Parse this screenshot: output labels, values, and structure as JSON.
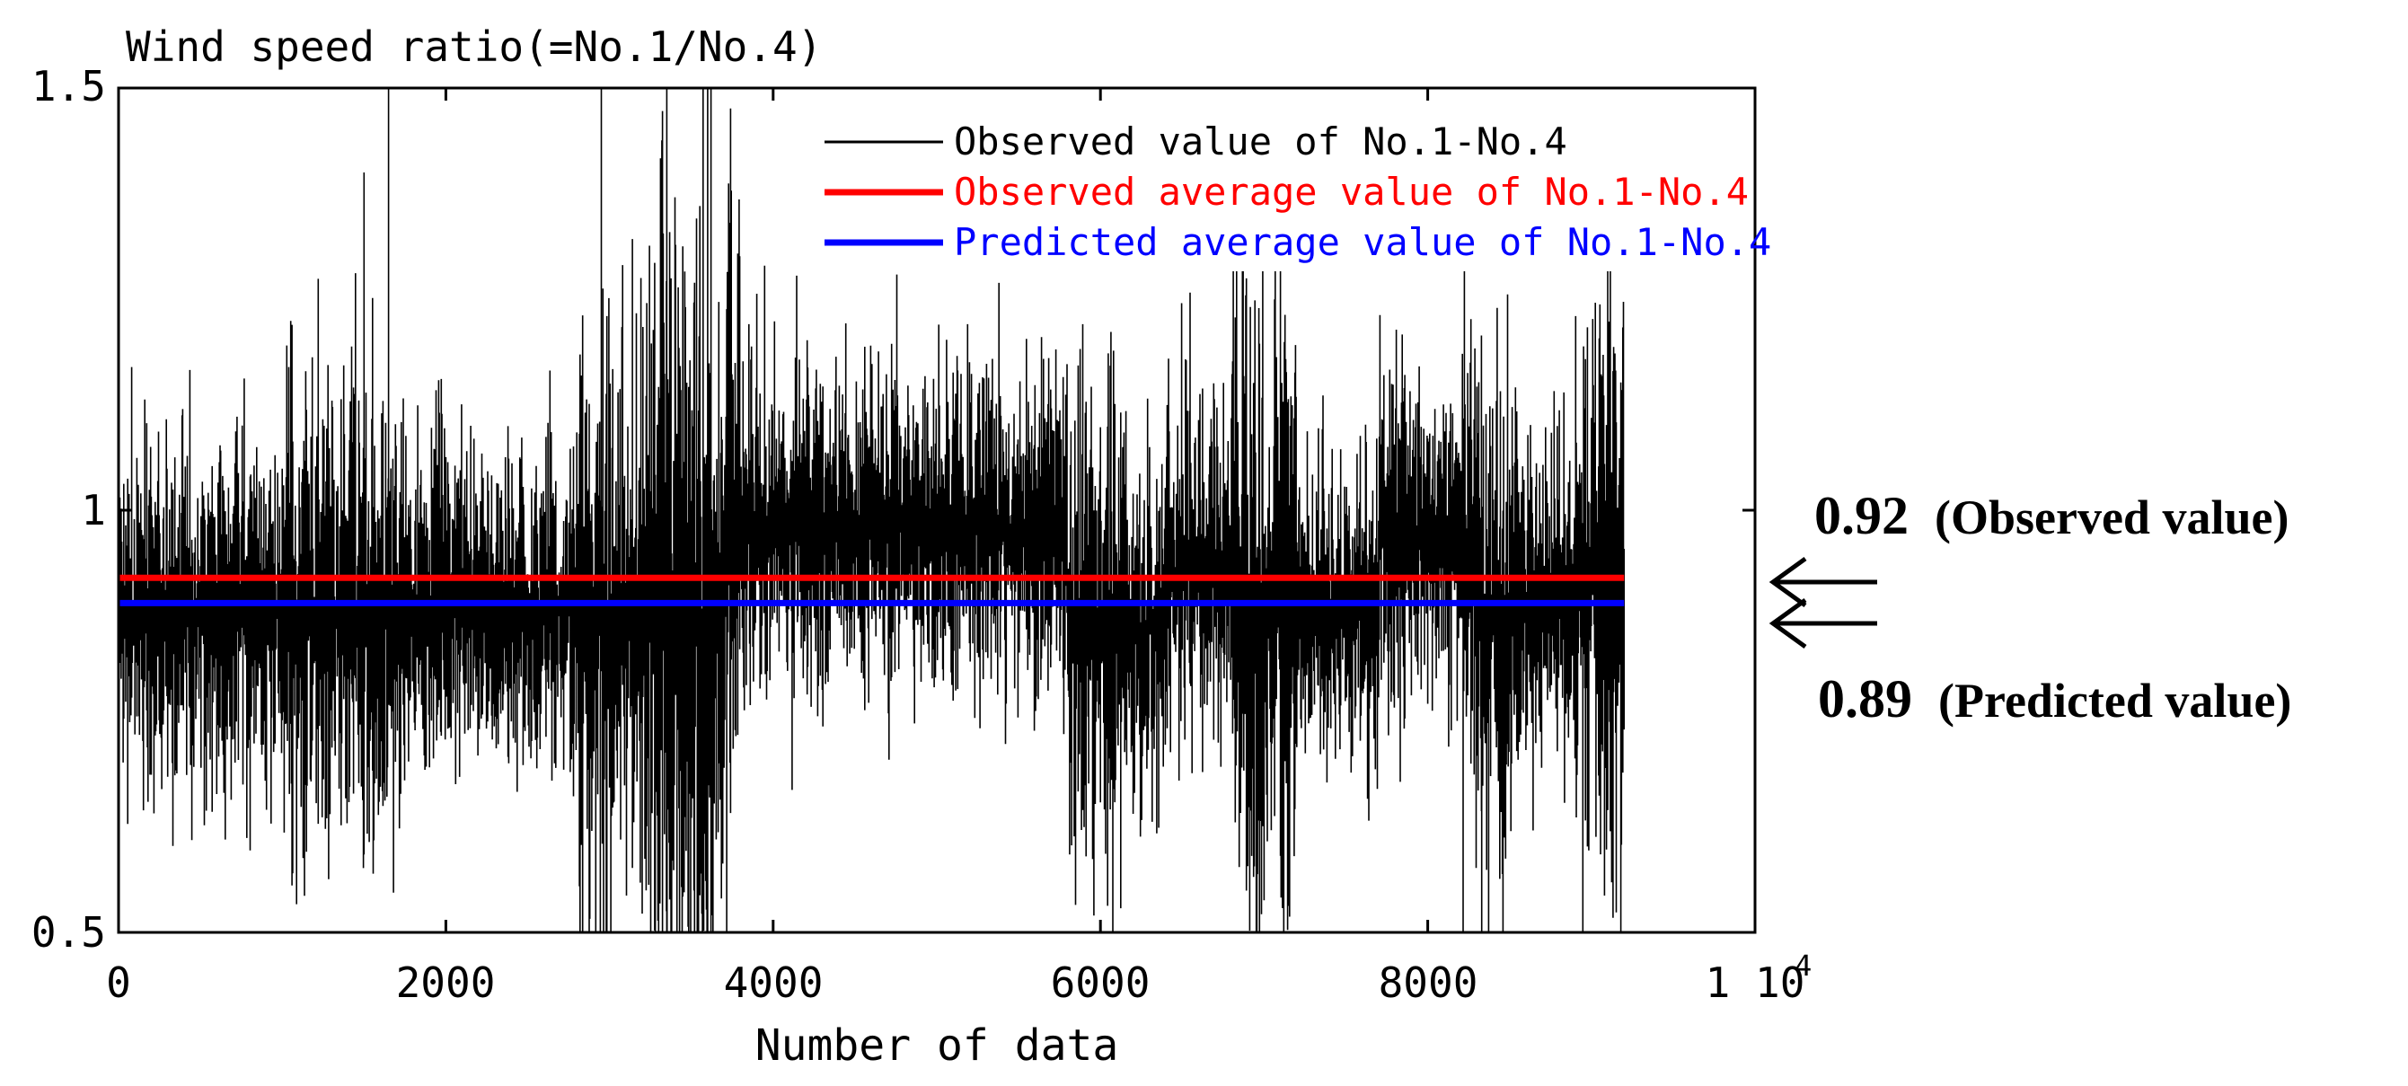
{
  "chart_data": {
    "type": "line",
    "title": "Wind speed ratio(=No.1/No.4)",
    "xlabel": "Number of data",
    "ylabel": "",
    "xlim": [
      0,
      10000
    ],
    "ylim": [
      0.5,
      1.5
    ],
    "x_ticks": [
      0,
      2000,
      4000,
      6000,
      8000,
      10000
    ],
    "x_tick_labels": [
      "0",
      "2000",
      "4000",
      "6000",
      "8000",
      "1 10"
    ],
    "x_tick_last_exponent": "4",
    "y_ticks": [
      0.5,
      1,
      1.5
    ],
    "y_tick_labels": [
      "0.5",
      "1",
      "1.5"
    ],
    "grid": false,
    "legend_position": "top-right",
    "series": [
      {
        "name": "Observed value of No.1-No.4",
        "color": "#000000",
        "kind": "noisy",
        "n_points": 9200,
        "mean": 0.92
      },
      {
        "name": "Observed average value of No.1-No.4",
        "color": "#ff0000",
        "kind": "constant",
        "x": [
          0,
          9200
        ],
        "value": 0.92
      },
      {
        "name": "Predicted average value of No.1-No.4",
        "color": "#0000ff",
        "kind": "constant",
        "x": [
          0,
          9200
        ],
        "value": 0.89
      }
    ],
    "annotations": [
      {
        "value": "0.92",
        "text": "(Observed value)"
      },
      {
        "value": "0.89",
        "text": "(Predicted value)"
      }
    ]
  }
}
